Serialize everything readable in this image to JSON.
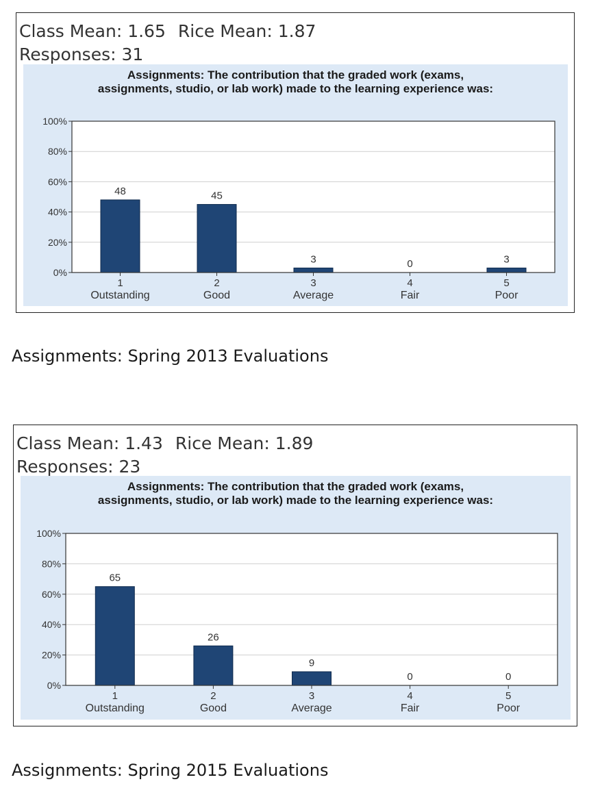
{
  "colors": {
    "bar": "#1f4575",
    "plot_bg": "#ffffff",
    "panel_bg": "#dde9f6",
    "grid": "#cfcfcf"
  },
  "chart_data": [
    {
      "type": "bar",
      "class_mean_text": "Class Mean: 1.65",
      "rice_mean_text": "Rice Mean: 1.87",
      "responses_text": "Responses: 31",
      "title_line1": "Assignments: The contribution that the graded work (exams,",
      "title_line2": "assignments, studio, or lab work) made to the learning experience was:",
      "categories": [
        {
          "num": "1",
          "label": "Outstanding"
        },
        {
          "num": "2",
          "label": "Good"
        },
        {
          "num": "3",
          "label": "Average"
        },
        {
          "num": "4",
          "label": "Fair"
        },
        {
          "num": "5",
          "label": "Poor"
        }
      ],
      "values": [
        48,
        45,
        3,
        0,
        3
      ],
      "y_ticks": [
        "0%",
        "20%",
        "40%",
        "60%",
        "80%",
        "100%"
      ],
      "ylim": [
        0,
        100
      ],
      "grid": true,
      "caption": "Assignments: Spring 2013 Evaluations"
    },
    {
      "type": "bar",
      "class_mean_text": "Class Mean: 1.43",
      "rice_mean_text": "Rice Mean: 1.89",
      "responses_text": "Responses: 23",
      "title_line1": "Assignments: The contribution that the graded work (exams,",
      "title_line2": "assignments, studio, or lab work) made to the learning experience was:",
      "categories": [
        {
          "num": "1",
          "label": "Outstanding"
        },
        {
          "num": "2",
          "label": "Good"
        },
        {
          "num": "3",
          "label": "Average"
        },
        {
          "num": "4",
          "label": "Fair"
        },
        {
          "num": "5",
          "label": "Poor"
        }
      ],
      "values": [
        65,
        26,
        9,
        0,
        0
      ],
      "y_ticks": [
        "0%",
        "20%",
        "40%",
        "60%",
        "80%",
        "100%"
      ],
      "ylim": [
        0,
        100
      ],
      "grid": true,
      "caption": "Assignments: Spring 2015 Evaluations"
    }
  ]
}
